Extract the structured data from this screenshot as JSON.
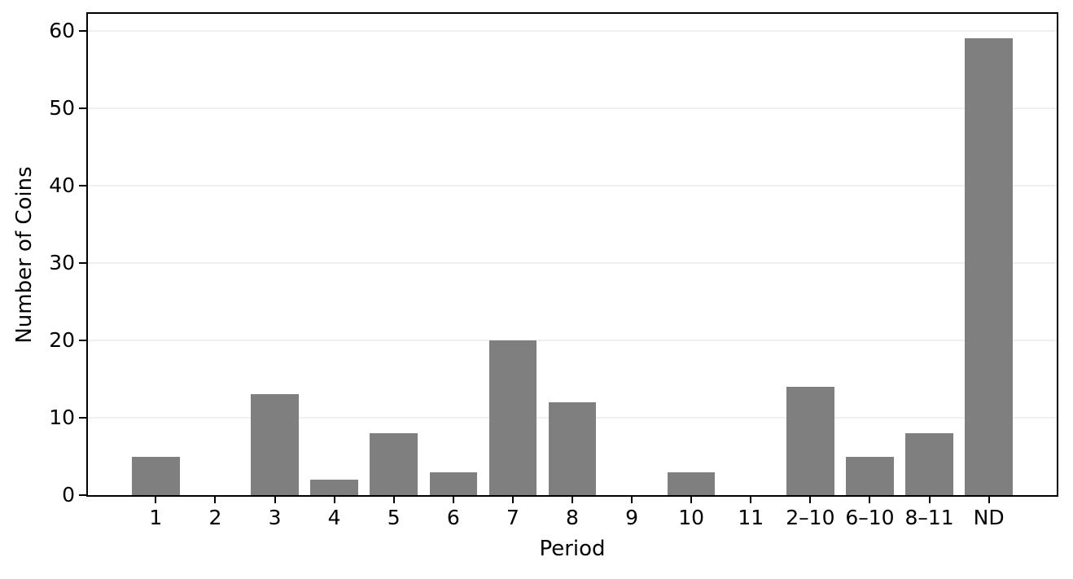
{
  "chart_data": {
    "type": "bar",
    "title": "",
    "xlabel": "Period",
    "ylabel": "Number of Coins",
    "categories": [
      "1",
      "2",
      "3",
      "4",
      "5",
      "6",
      "7",
      "8",
      "9",
      "10",
      "11",
      "2–10",
      "6–10",
      "8–11",
      "ND"
    ],
    "values": [
      5,
      0,
      13,
      2,
      8,
      3,
      20,
      12,
      0,
      3,
      0,
      14,
      5,
      8,
      59
    ],
    "yticks": [
      0,
      10,
      20,
      30,
      40,
      50,
      60
    ],
    "ylim": [
      0,
      62.2
    ],
    "bar_rel_width": 0.8,
    "bar_color": "#7f7f7f",
    "grid_color": "#f0f0f0",
    "axis_color": "#000000",
    "grid": "horizontal",
    "legend": "none",
    "frame": "full-box"
  }
}
